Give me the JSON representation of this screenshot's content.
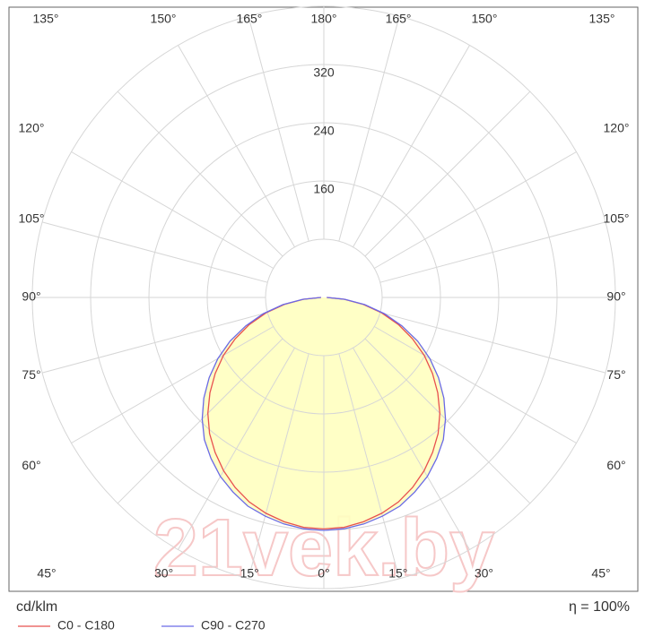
{
  "chart_data": {
    "type": "polar",
    "radial_unit": "cd/klm",
    "efficiency": "η = 100%",
    "watermark": "21vek.by",
    "rlim": [
      0,
      400
    ],
    "rgrid": [
      80,
      160,
      240,
      320,
      400
    ],
    "rticks": [
      160,
      240,
      320
    ],
    "theta_grid_step": 15,
    "angle_ticks": [
      {
        "value": -135,
        "label": "135°"
      },
      {
        "value": -150,
        "label": "150°"
      },
      {
        "value": -165,
        "label": "165°"
      },
      {
        "value": 180,
        "label": "180°"
      },
      {
        "value": 165,
        "label": "165°"
      },
      {
        "value": 150,
        "label": "150°"
      },
      {
        "value": 135,
        "label": "135°"
      },
      {
        "value": -120,
        "label": "120°"
      },
      {
        "value": -105,
        "label": "105°"
      },
      {
        "value": -90,
        "label": "90°"
      },
      {
        "value": -75,
        "label": "75°"
      },
      {
        "value": -60,
        "label": "60°"
      },
      {
        "value": 120,
        "label": "120°"
      },
      {
        "value": 105,
        "label": "105°"
      },
      {
        "value": 90,
        "label": "90°"
      },
      {
        "value": 75,
        "label": "75°"
      },
      {
        "value": 60,
        "label": "60°"
      },
      {
        "value": -45,
        "label": "45°"
      },
      {
        "value": -30,
        "label": "30°"
      },
      {
        "value": -15,
        "label": "15°"
      },
      {
        "value": 0,
        "label": "0°"
      },
      {
        "value": 15,
        "label": "15°"
      },
      {
        "value": 30,
        "label": "30°"
      },
      {
        "value": 45,
        "label": "45°"
      }
    ],
    "angles": [
      0,
      5,
      10,
      15,
      20,
      25,
      30,
      35,
      40,
      45,
      50,
      55,
      60,
      65,
      70,
      75,
      80,
      85,
      90
    ],
    "series": [
      {
        "name": "C0 - C180",
        "color": "#e8504f",
        "values": [
          318,
          317,
          313,
          307,
          299,
          288,
          275,
          260,
          244,
          225,
          204,
          182,
          159,
          134,
          109,
          82,
          55,
          28,
          4
        ]
      },
      {
        "name": "C90 - C270",
        "color": "#6a6ae6",
        "values": [
          320,
          319,
          316,
          311,
          305,
          295,
          284,
          270,
          255,
          236,
          215,
          192,
          168,
          142,
          114,
          86,
          57,
          29,
          4
        ]
      }
    ],
    "fill_color": "#ffffc0",
    "grid_color": "#d6d6d6"
  }
}
